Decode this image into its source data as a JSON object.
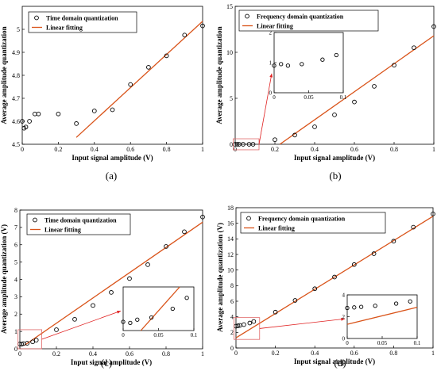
{
  "colors": {
    "marker": "#000000",
    "fit_line": "#d95319",
    "zoom_box": "#e06666",
    "arrow": "#e02020"
  },
  "panels": [
    {
      "label": "(a)",
      "legend": [
        "Time domain quantization",
        "Linear fitting"
      ],
      "xlabel": "Input signal amplitude (V)",
      "ylabel": "Average amplitude quantization",
      "xlim": [
        0,
        1
      ],
      "ylim": [
        4.5,
        5.1
      ],
      "xticks": [
        "0",
        "0.2",
        "0.4",
        "0.6",
        "0.8",
        "1"
      ],
      "yticks": [
        "4.5",
        "4.6",
        "4.7",
        "4.8",
        "4.9",
        "5"
      ],
      "inset": null,
      "zoom_box": null
    },
    {
      "label": "(b)",
      "legend": [
        "Frequency domain quantization",
        "Linear fitting"
      ],
      "xlabel": "Input signal amplitude (V)",
      "ylabel": "Average amplitude quantization",
      "xlim": [
        0,
        1
      ],
      "ylim": [
        0,
        15
      ],
      "xticks": [
        "0",
        "0.2",
        "0.4",
        "0.6",
        "0.8",
        "1"
      ],
      "yticks": [
        "0",
        "5",
        "10",
        "15"
      ],
      "inset": {
        "xlim": [
          0,
          0.1
        ],
        "ylim": [
          0,
          0.002
        ],
        "xticks": [
          "0",
          "0.05",
          "0.1"
        ],
        "yticks": [
          "0",
          "1",
          "2"
        ],
        "multiplier": "×10",
        "exponent": "-3"
      },
      "zoom_box": {
        "xlim": [
          -0.01,
          0.12
        ],
        "ylim": [
          -0.6,
          0.6
        ]
      }
    },
    {
      "label": "(c)",
      "legend": [
        "Time domain quantization",
        "Linear fitting"
      ],
      "xlabel": "Input signal amplitude (V)",
      "ylabel": "Average amplitude quantization (V)",
      "xlim": [
        0,
        1
      ],
      "ylim": [
        0,
        8
      ],
      "xticks": [
        "0",
        "0.2",
        "0.4",
        "0.6",
        "0.8",
        "1"
      ],
      "yticks": [
        "0",
        "1",
        "2",
        "3",
        "4",
        "5",
        "6",
        "7",
        "8"
      ],
      "inset": {
        "xlim": [
          0,
          0.1
        ],
        "ylim": [
          0.2,
          0.6
        ],
        "xticks": [
          "0",
          "0.05",
          "0.1"
        ],
        "yticks": [],
        "multiplier": null,
        "exponent": null
      },
      "zoom_box": {
        "xlim": [
          -0.01,
          0.12
        ],
        "ylim": [
          0,
          1.1
        ]
      }
    },
    {
      "label": "(d)",
      "legend": [
        "Frequency domain quantization",
        "Linear fitting"
      ],
      "xlabel": "Input signal amplitude (V)",
      "ylabel": "Average amplitude quantization (V)",
      "xlim": [
        0,
        1
      ],
      "ylim": [
        0,
        18
      ],
      "xticks": [
        "0",
        "0.2",
        "0.4",
        "0.6",
        "0.8",
        "1"
      ],
      "yticks": [
        "0",
        "2",
        "4",
        "6",
        "8",
        "10",
        "12",
        "14",
        "16",
        "18"
      ],
      "inset": {
        "xlim": [
          0,
          0.1
        ],
        "ylim": [
          0,
          4
        ],
        "xticks": [
          "0",
          "0.05",
          "0.1"
        ],
        "yticks": [
          "0",
          "2",
          "4"
        ],
        "multiplier": null,
        "exponent": null
      },
      "zoom_box": {
        "xlim": [
          -0.01,
          0.12
        ],
        "ylim": [
          1.1,
          3.9
        ]
      }
    }
  ],
  "chart_data": [
    {
      "type": "scatter",
      "series": [
        {
          "name": "Time domain quantization",
          "x": [
            0,
            0.01,
            0.02,
            0.04,
            0.07,
            0.09,
            0.2,
            0.3,
            0.4,
            0.5,
            0.6,
            0.7,
            0.8,
            0.9,
            1.0
          ],
          "y": [
            4.6,
            4.57,
            4.575,
            4.6,
            4.632,
            4.632,
            4.632,
            4.59,
            4.645,
            4.65,
            4.76,
            4.835,
            4.885,
            4.975,
            5.015
          ]
        },
        {
          "name": "Linear fitting",
          "x": [
            0.3,
            1.0
          ],
          "y": [
            4.53,
            5.035
          ]
        }
      ]
    },
    {
      "type": "scatter",
      "series": [
        {
          "name": "Frequency domain quantization",
          "x": [
            0,
            0.01,
            0.02,
            0.04,
            0.07,
            0.09,
            0.2,
            0.3,
            0.4,
            0.5,
            0.6,
            0.7,
            0.8,
            0.9,
            1.0
          ],
          "y": [
            0.0009,
            0.00095,
            0.0009,
            0.00095,
            0.0011,
            0.00125,
            0.5,
            1.0,
            1.9,
            3.2,
            4.6,
            6.3,
            8.6,
            10.5,
            12.8
          ]
        },
        {
          "name": "Linear fitting",
          "x": [
            0.225,
            1.0
          ],
          "y": [
            0,
            11.8
          ]
        }
      ]
    },
    {
      "type": "scatter",
      "series": [
        {
          "name": "Time domain quantization",
          "x": [
            0,
            0.01,
            0.02,
            0.04,
            0.07,
            0.09,
            0.2,
            0.3,
            0.4,
            0.5,
            0.6,
            0.7,
            0.8,
            0.9,
            1.0
          ],
          "y": [
            0.28,
            0.27,
            0.3,
            0.32,
            0.4,
            0.5,
            1.1,
            1.7,
            2.5,
            3.25,
            4.05,
            4.85,
            5.9,
            6.75,
            7.6
          ]
        },
        {
          "name": "Linear fitting",
          "x": [
            0.025,
            1.0
          ],
          "y": [
            0.2,
            7.3
          ]
        }
      ]
    },
    {
      "type": "scatter",
      "series": [
        {
          "name": "Frequency domain quantization",
          "x": [
            0,
            0.01,
            0.02,
            0.04,
            0.07,
            0.09,
            0.2,
            0.3,
            0.4,
            0.5,
            0.6,
            0.7,
            0.8,
            0.9,
            1.0
          ],
          "y": [
            2.8,
            2.85,
            2.9,
            3.0,
            3.2,
            3.4,
            4.6,
            6.1,
            7.6,
            9.1,
            10.7,
            12.1,
            13.7,
            15.5,
            17.2
          ]
        },
        {
          "name": "Linear fitting",
          "x": [
            0,
            1.0
          ],
          "y": [
            1.3,
            16.9
          ]
        }
      ]
    }
  ]
}
